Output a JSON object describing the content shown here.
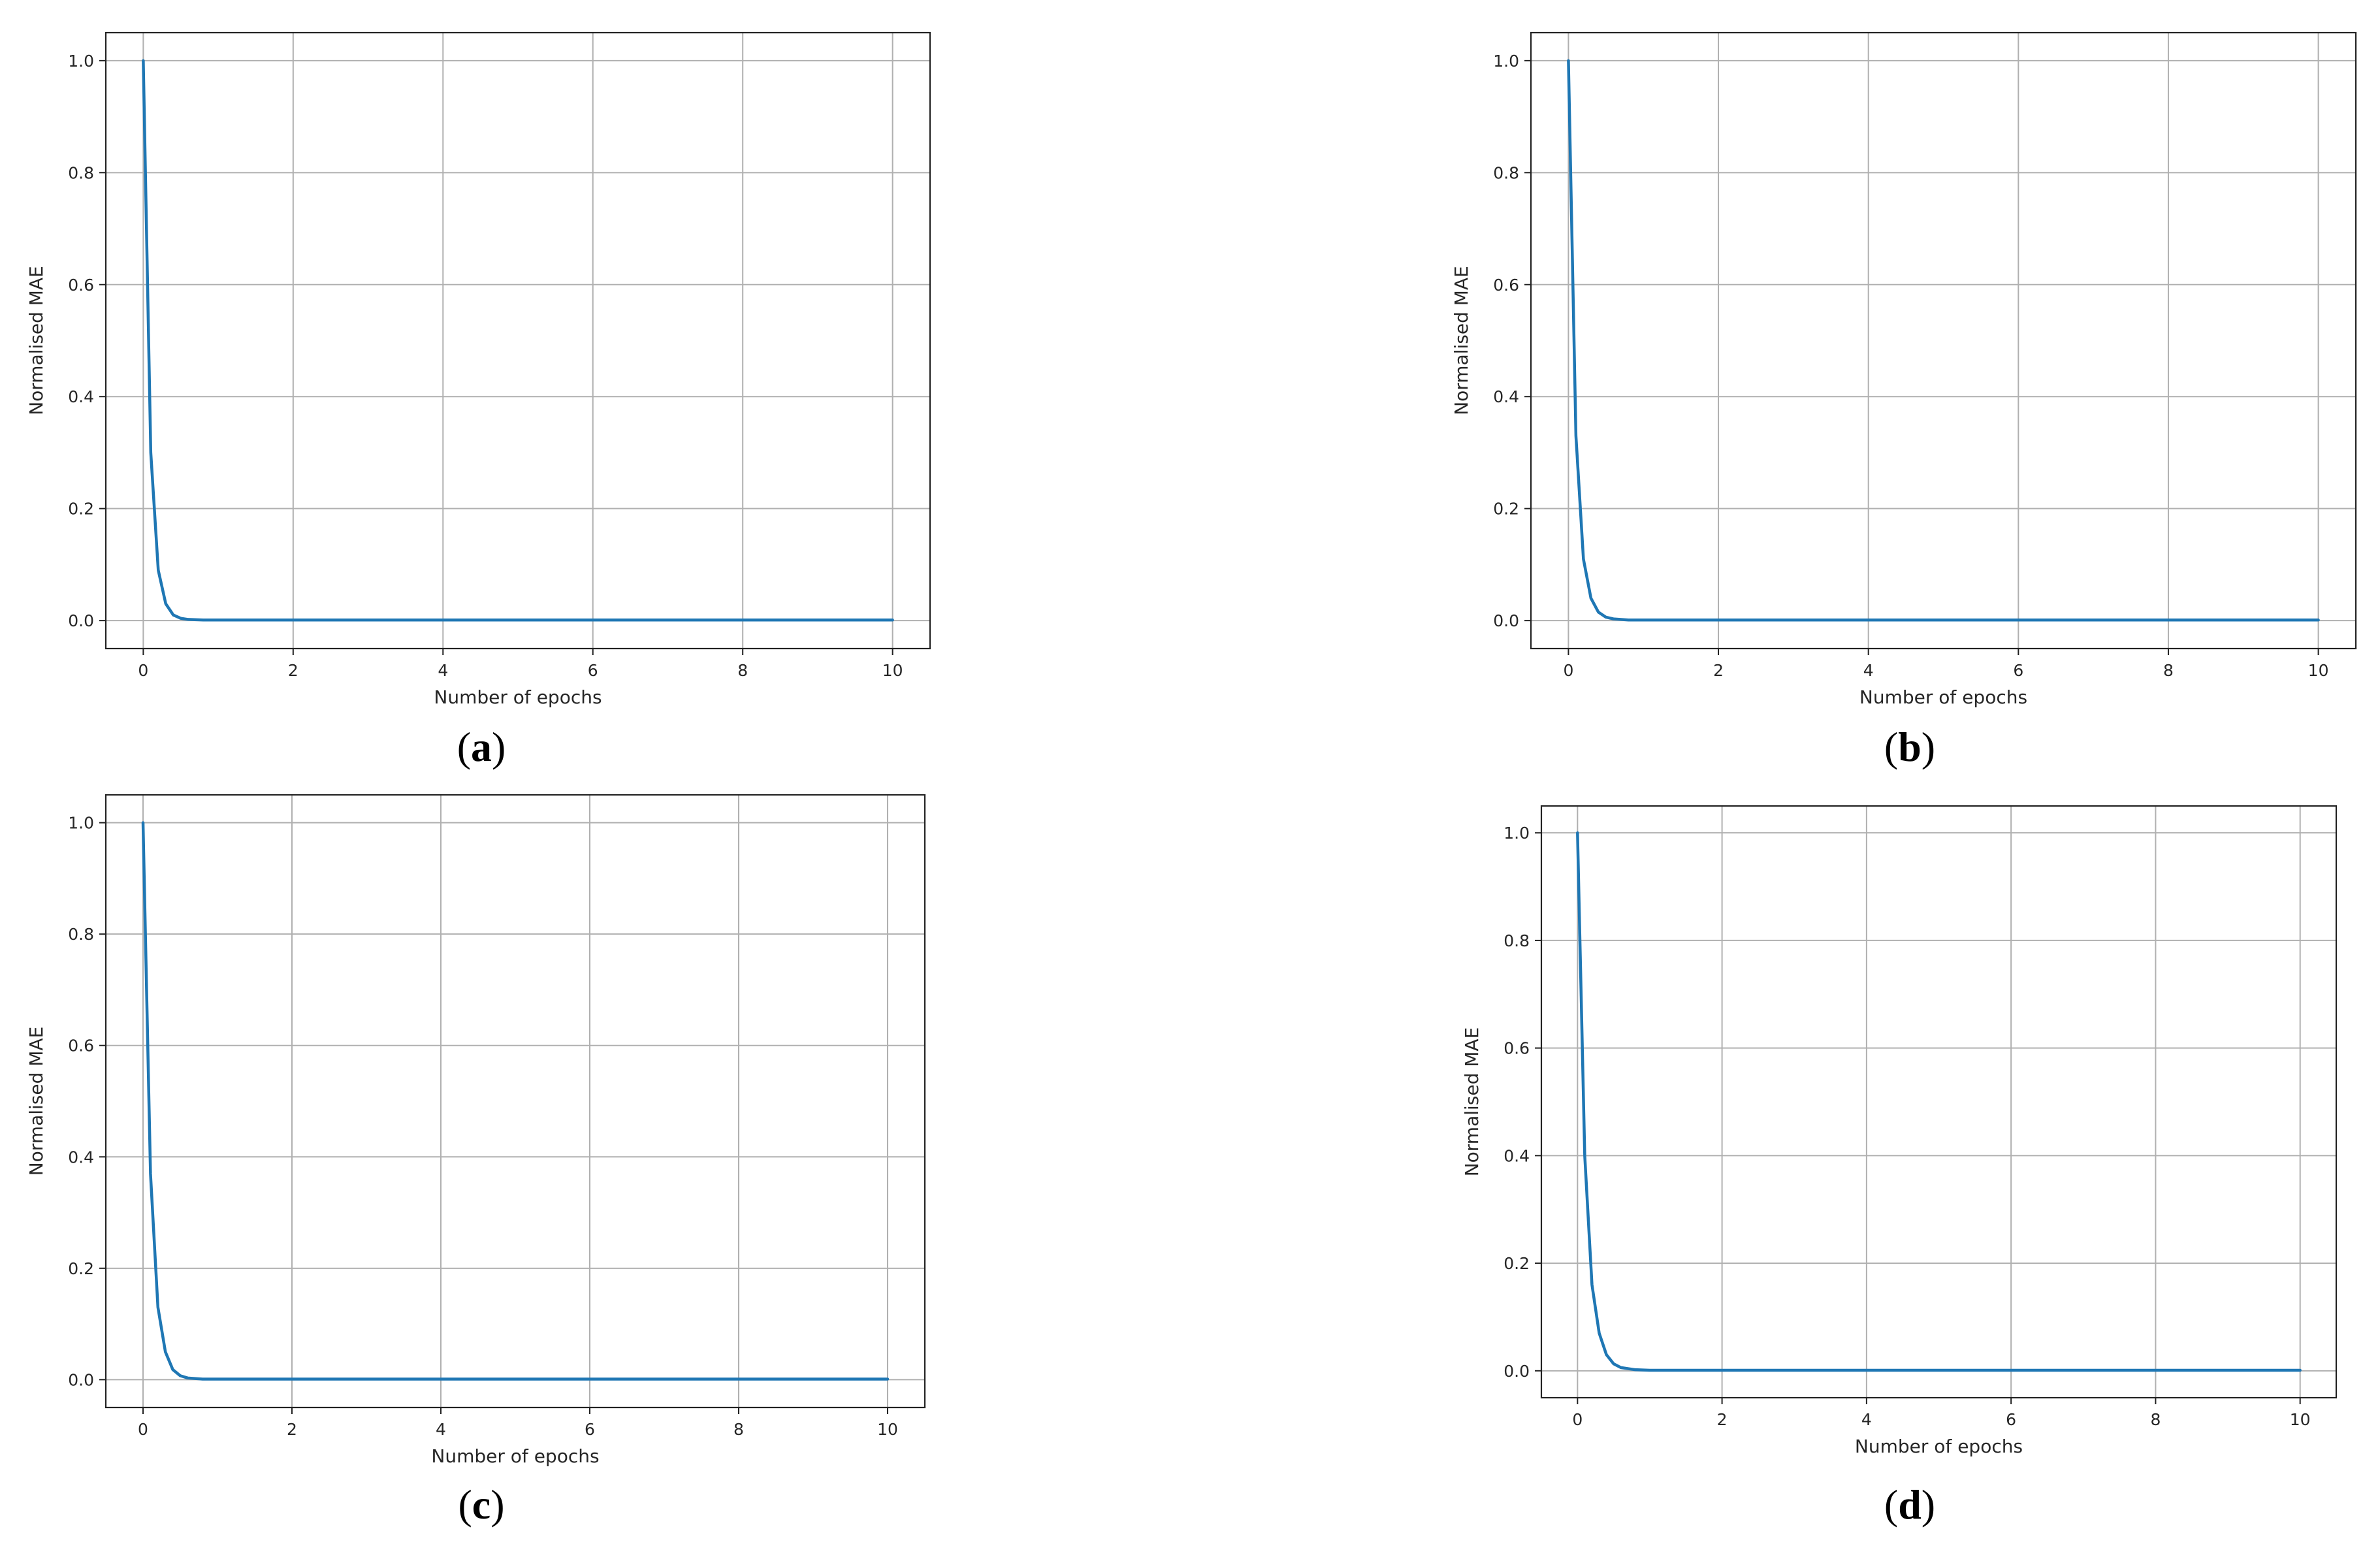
{
  "chart_data": [
    {
      "panel": "a",
      "caption": {
        "open": "(",
        "letter": "a",
        "close": ")"
      },
      "type": "line",
      "xlabel": "Number of epochs",
      "ylabel": "Normalised MAE",
      "xlim": [
        -0.5,
        10.5
      ],
      "ylim": [
        -0.05,
        1.05
      ],
      "xticks": [
        "0",
        "2",
        "4",
        "6",
        "8",
        "10"
      ],
      "yticks": [
        "0.0",
        "0.2",
        "0.4",
        "0.6",
        "0.8",
        "1.0"
      ],
      "grid": true,
      "line_color": "#1f77b4",
      "series": [
        {
          "x": [
            0,
            0.1,
            0.2,
            0.3,
            0.4,
            0.5,
            0.6,
            0.8,
            1,
            2,
            4,
            6,
            8,
            10
          ],
          "values": [
            1.0,
            0.3,
            0.09,
            0.03,
            0.01,
            0.004,
            0.002,
            0.001,
            0.001,
            0.001,
            0.001,
            0.001,
            0.001,
            0.001
          ]
        }
      ]
    },
    {
      "panel": "b",
      "caption": {
        "open": "(",
        "letter": "b",
        "close": ")"
      },
      "type": "line",
      "xlabel": "Number of epochs",
      "ylabel": "Normalised MAE",
      "xlim": [
        -0.5,
        10.5
      ],
      "ylim": [
        -0.05,
        1.05
      ],
      "xticks": [
        "0",
        "2",
        "4",
        "6",
        "8",
        "10"
      ],
      "yticks": [
        "0.0",
        "0.2",
        "0.4",
        "0.6",
        "0.8",
        "1.0"
      ],
      "grid": true,
      "line_color": "#1f77b4",
      "series": [
        {
          "x": [
            0,
            0.1,
            0.2,
            0.3,
            0.4,
            0.5,
            0.6,
            0.8,
            1,
            2,
            4,
            6,
            8,
            10
          ],
          "values": [
            1.0,
            0.33,
            0.11,
            0.04,
            0.015,
            0.006,
            0.003,
            0.001,
            0.001,
            0.001,
            0.001,
            0.001,
            0.001,
            0.001
          ]
        }
      ]
    },
    {
      "panel": "c",
      "caption": {
        "open": "(",
        "letter": "c",
        "close": ")"
      },
      "type": "line",
      "xlabel": "Number of epochs",
      "ylabel": "Normalised MAE",
      "xlim": [
        -0.5,
        10.5
      ],
      "ylim": [
        -0.05,
        1.05
      ],
      "xticks": [
        "0",
        "2",
        "4",
        "6",
        "8",
        "10"
      ],
      "yticks": [
        "0.0",
        "0.2",
        "0.4",
        "0.6",
        "0.8",
        "1.0"
      ],
      "grid": true,
      "line_color": "#1f77b4",
      "series": [
        {
          "x": [
            0,
            0.1,
            0.2,
            0.3,
            0.4,
            0.5,
            0.6,
            0.8,
            1,
            2,
            4,
            6,
            8,
            10
          ],
          "values": [
            1.0,
            0.37,
            0.13,
            0.05,
            0.018,
            0.007,
            0.003,
            0.001,
            0.001,
            0.001,
            0.001,
            0.001,
            0.001,
            0.001
          ]
        }
      ]
    },
    {
      "panel": "d",
      "caption": {
        "open": "(",
        "letter": "d",
        "close": ")"
      },
      "type": "line",
      "xlabel": "Number of epochs",
      "ylabel": "Normalised MAE",
      "xlim": [
        -0.5,
        10.5
      ],
      "ylim": [
        -0.05,
        1.05
      ],
      "xticks": [
        "0",
        "2",
        "4",
        "6",
        "8",
        "10"
      ],
      "yticks": [
        "0.0",
        "0.2",
        "0.4",
        "0.6",
        "0.8",
        "1.0"
      ],
      "grid": true,
      "line_color": "#1f77b4",
      "series": [
        {
          "x": [
            0,
            0.1,
            0.2,
            0.3,
            0.4,
            0.5,
            0.6,
            0.8,
            1,
            2,
            4,
            6,
            8,
            10
          ],
          "values": [
            1.0,
            0.4,
            0.16,
            0.07,
            0.03,
            0.013,
            0.006,
            0.002,
            0.001,
            0.001,
            0.001,
            0.001,
            0.001,
            0.001
          ]
        }
      ]
    }
  ]
}
